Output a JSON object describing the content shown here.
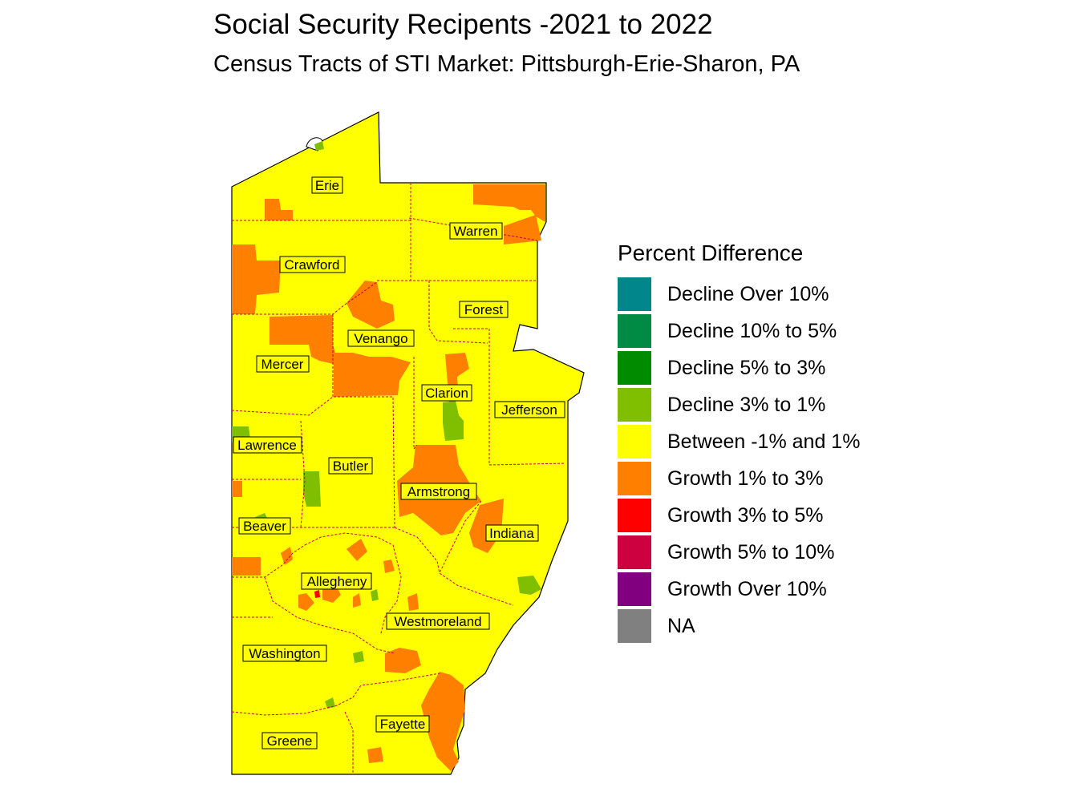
{
  "title": "Social Security Recipents -2021 to 2022",
  "subtitle": "Census Tracts of STI Market: Pittsburgh-Erie-Sharon, PA",
  "legend": {
    "title": "Percent Difference",
    "items": [
      {
        "label": "Decline Over 10%",
        "color": "#00868b"
      },
      {
        "label": "Decline 10% to 5%",
        "color": "#008b45"
      },
      {
        "label": "Decline 5% to 3%",
        "color": "#008b00"
      },
      {
        "label": "Decline 3% to 1%",
        "color": "#7fbf00"
      },
      {
        "label": "Between -1% and 1%",
        "color": "#ffff00"
      },
      {
        "label": "Growth 1% to 3%",
        "color": "#ff7f00"
      },
      {
        "label": "Growth 3% to 5%",
        "color": "#ff0000"
      },
      {
        "label": "Growth 5% to 10%",
        "color": "#cd0040"
      },
      {
        "label": "Growth Over 10%",
        "color": "#800080"
      },
      {
        "label": "NA",
        "color": "#808080"
      }
    ]
  },
  "counties": [
    "Erie",
    "Warren",
    "Crawford",
    "Forest",
    "Venango",
    "Mercer",
    "Clarion",
    "Jefferson",
    "Lawrence",
    "Butler",
    "Armstrong",
    "Beaver",
    "Indiana",
    "Allegheny",
    "Westmoreland",
    "Washington",
    "Fayette",
    "Greene"
  ]
}
